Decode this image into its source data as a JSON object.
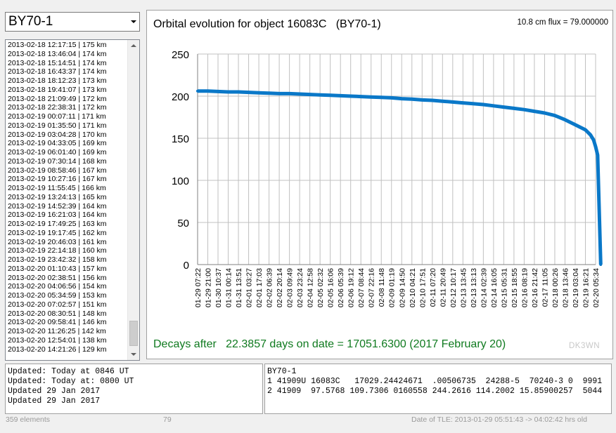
{
  "object_select": {
    "value": "BY70-1",
    "icon": "chevron-down-icon"
  },
  "pass_list": {
    "rows": [
      "2013-02-18  12:17:15 | 175 km",
      "2013-02-18  13:46:04 | 174 km",
      "2013-02-18  15:14:51 | 174 km",
      "2013-02-18  16:43:37 | 174 km",
      "2013-02-18  18:12:23 | 173 km",
      "2013-02-18  19:41:07 | 173 km",
      "2013-02-18  21:09:49 | 172 km",
      "2013-02-18  22:38:31 | 172 km",
      "2013-02-19  00:07:11 | 171 km",
      "2013-02-19  01:35:50 | 171 km",
      "2013-02-19  03:04:28 | 170 km",
      "2013-02-19  04:33:05 | 169 km",
      "2013-02-19  06:01:40 | 169 km",
      "2013-02-19  07:30:14 | 168 km",
      "2013-02-19  08:58:46 | 167 km",
      "2013-02-19  10:27:16 | 167 km",
      "2013-02-19  11:55:45 | 166 km",
      "2013-02-19  13:24:13 | 165 km",
      "2013-02-19  14:52:39 | 164 km",
      "2013-02-19  16:21:03 | 164 km",
      "2013-02-19  17:49:25 | 163 km",
      "2013-02-19  19:17:45 | 162 km",
      "2013-02-19  20:46:03 | 161 km",
      "2013-02-19  22:14:18 | 160 km",
      "2013-02-19  23:42:32 | 158 km",
      "2013-02-20  01:10:43 | 157 km",
      "2013-02-20  02:38:51 | 156 km",
      "2013-02-20  04:06:56 | 154 km",
      "2013-02-20  05:34:59 | 153 km",
      "2013-02-20  07:02:57 | 151 km",
      "2013-02-20  08:30:51 | 148 km",
      "2013-02-20  09:58:41 | 146 km",
      "2013-02-20  11:26:25 | 142 km",
      "2013-02-20  12:54:01 | 138 km",
      "2013-02-20  14:21:26 | 129 km"
    ]
  },
  "chart": {
    "title": "Orbital evolution for object 16083C   (BY70-1)",
    "flux": "10.8 cm flux = 79.000000",
    "decay_text": "Decays after   22.3857 days on date = 17051.6300 (2017 February 20)",
    "watermark": "DK3WN",
    "line_color": "#0a78c8",
    "grid_color": "#c0c0c0"
  },
  "chart_data": {
    "type": "line",
    "title": "Orbital evolution for object 16083C   (BY70-1)",
    "xlabel": "",
    "ylabel": "",
    "ylim": [
      0,
      250
    ],
    "yticks": [
      0,
      50,
      100,
      150,
      200,
      250
    ],
    "xticks": [
      "01-29 07:22",
      "01-29 21:00",
      "01-30 10:37",
      "01-31 00:14",
      "01-31 13:51",
      "02-01 03:27",
      "02-01 17:03",
      "02-02 06:39",
      "02-02 20:14",
      "02-03 09:49",
      "02-03 23:24",
      "02-04 12:58",
      "02-05 02:32",
      "02-05 16:06",
      "02-06 05:39",
      "02-06 19:12",
      "02-07 08:44",
      "02-07 22:16",
      "02-08 11:48",
      "02-09 01:19",
      "02-09 14:50",
      "02-10 04:21",
      "02-10 17:51",
      "02-11 07:20",
      "02-11 20:49",
      "02-12 10:17",
      "02-13 13:45",
      "02-13 13:13",
      "02-14 02:39",
      "02-14 16:05",
      "02-15 05:31",
      "02-15 18:55",
      "02-16 08:19",
      "02-16 21:42",
      "02-17 11:05",
      "02-18 00:26",
      "02-18 13:46",
      "02-19 03:04",
      "02-19 16:21",
      "02-20 05:34"
    ],
    "x": [
      0,
      1,
      2,
      3,
      4,
      5,
      6,
      7,
      8,
      9,
      10,
      11,
      12,
      13,
      14,
      15,
      16,
      17,
      18,
      19,
      20,
      21,
      22,
      23,
      24,
      25,
      26,
      27,
      28,
      29,
      30,
      31,
      32,
      33,
      34,
      35,
      36,
      37,
      38,
      38.5,
      38.8,
      39,
      39.2,
      39.35,
      39.5
    ],
    "values": [
      206,
      206,
      205.5,
      205,
      205,
      204.5,
      204,
      203.5,
      203,
      203,
      202.5,
      202,
      201.5,
      201,
      200.5,
      200,
      199.5,
      199,
      198.5,
      198,
      197,
      196.5,
      195.5,
      195,
      194,
      193,
      192,
      191,
      190,
      188.5,
      187,
      185.5,
      184,
      182,
      180,
      177,
      172,
      166,
      160,
      154,
      148,
      140,
      130,
      65,
      0
    ],
    "grid": true,
    "legend": "none"
  },
  "tle_info": {
    "left_lines": [
      "Updated: Today at 0846 UT",
      "Updated: Today at: 0800 UT",
      "Updated 29 Jan 2017",
      "Updated 29 Jan 2017"
    ],
    "right_lines": [
      "BY70-1",
      "1 41909U 16083C   17029.24424671  .00506735  24288-5  70240-3 0  9991",
      "2 41909  97.5768 109.7306 0160558 244.2616 114.2002 15.85900257  5044"
    ]
  },
  "status_bar": {
    "elements": "359 elements",
    "flux_value": "79",
    "tle_date": "Date of TLE: 2013-01-29 05:51:43  -> 04:02:42 hrs old"
  }
}
